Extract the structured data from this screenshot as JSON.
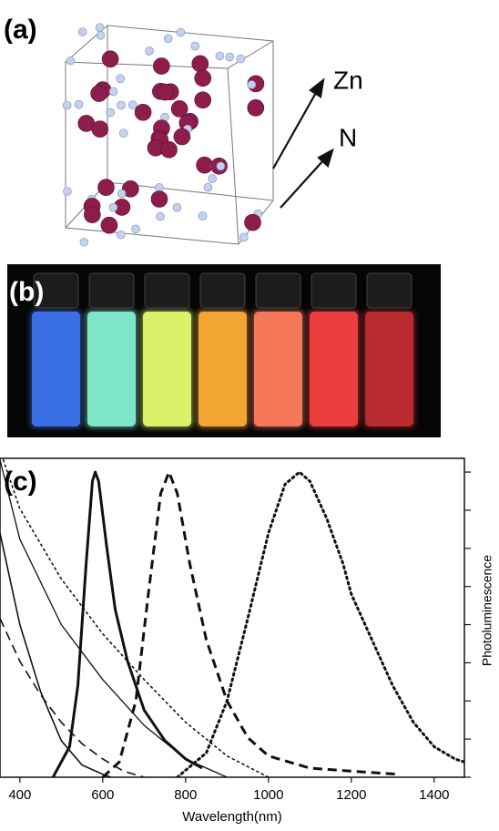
{
  "panels": [
    {
      "label": "(a)",
      "annotations": [
        "Zn",
        "N"
      ]
    },
    {
      "label": "(b)"
    }
  ],
  "chart_data": {
    "type": "line",
    "panel_label": "(c)",
    "xlabel": "Wavelength(nm)",
    "ylabel": "Photoluminescence",
    "xlim": [
      352,
      1473
    ],
    "ylim": [
      0,
      1.045
    ],
    "xticks": [
      400,
      600,
      800,
      1000,
      1200,
      1400
    ],
    "yticks": [
      0,
      0.125,
      0.25,
      0.375,
      0.5,
      0.625,
      0.75,
      0.875,
      1
    ],
    "series": [
      {
        "color": "#111",
        "style": "solid",
        "width": 3,
        "x": [
          480,
          520,
          540,
          560,
          575,
          582,
          590,
          610,
          630,
          660,
          700,
          750,
          800,
          840
        ],
        "values": [
          0,
          0.1,
          0.3,
          0.7,
          0.97,
          1.0,
          0.97,
          0.75,
          0.55,
          0.38,
          0.22,
          0.12,
          0.06,
          0.03
        ]
      },
      {
        "color": "#111",
        "style": "dashed",
        "width": 3,
        "x": [
          600,
          640,
          680,
          710,
          740,
          760,
          780,
          810,
          850,
          900,
          950,
          1000,
          1100,
          1200,
          1310
        ],
        "values": [
          0,
          0.05,
          0.25,
          0.6,
          0.93,
          1.0,
          0.93,
          0.7,
          0.45,
          0.25,
          0.13,
          0.07,
          0.03,
          0.02,
          0.01
        ]
      },
      {
        "color": "#111",
        "style": "dotted",
        "width": 3,
        "x": [
          780,
          850,
          900,
          950,
          1000,
          1040,
          1075,
          1100,
          1140,
          1180,
          1200,
          1250,
          1300,
          1350,
          1400,
          1450,
          1473
        ],
        "values": [
          0,
          0.08,
          0.25,
          0.52,
          0.8,
          0.96,
          1.0,
          0.97,
          0.85,
          0.7,
          0.6,
          0.45,
          0.3,
          0.18,
          0.1,
          0.06,
          0.05
        ]
      },
      {
        "color": "#111",
        "style": "solid",
        "width": 1.6,
        "x": [
          352,
          400,
          450,
          500,
          550,
          600,
          620
        ],
        "values": [
          0.8,
          0.5,
          0.28,
          0.12,
          0.04,
          0.01,
          0
        ]
      },
      {
        "color": "#111",
        "style": "dashed",
        "width": 1.6,
        "x": [
          352,
          400,
          450,
          500,
          550,
          600,
          650,
          700
        ],
        "values": [
          0.52,
          0.38,
          0.27,
          0.18,
          0.11,
          0.06,
          0.02,
          0
        ]
      },
      {
        "color": "#111",
        "style": "solid",
        "width": 1.3,
        "x": [
          352,
          400,
          500,
          600,
          700,
          800,
          900
        ],
        "values": [
          1.04,
          0.78,
          0.5,
          0.32,
          0.17,
          0.06,
          0
        ]
      },
      {
        "color": "#111",
        "style": "dotted",
        "width": 1.6,
        "x": [
          360,
          400,
          500,
          600,
          700,
          800,
          900,
          1000
        ],
        "values": [
          1.04,
          0.88,
          0.65,
          0.47,
          0.32,
          0.18,
          0.07,
          0
        ]
      }
    ]
  }
}
